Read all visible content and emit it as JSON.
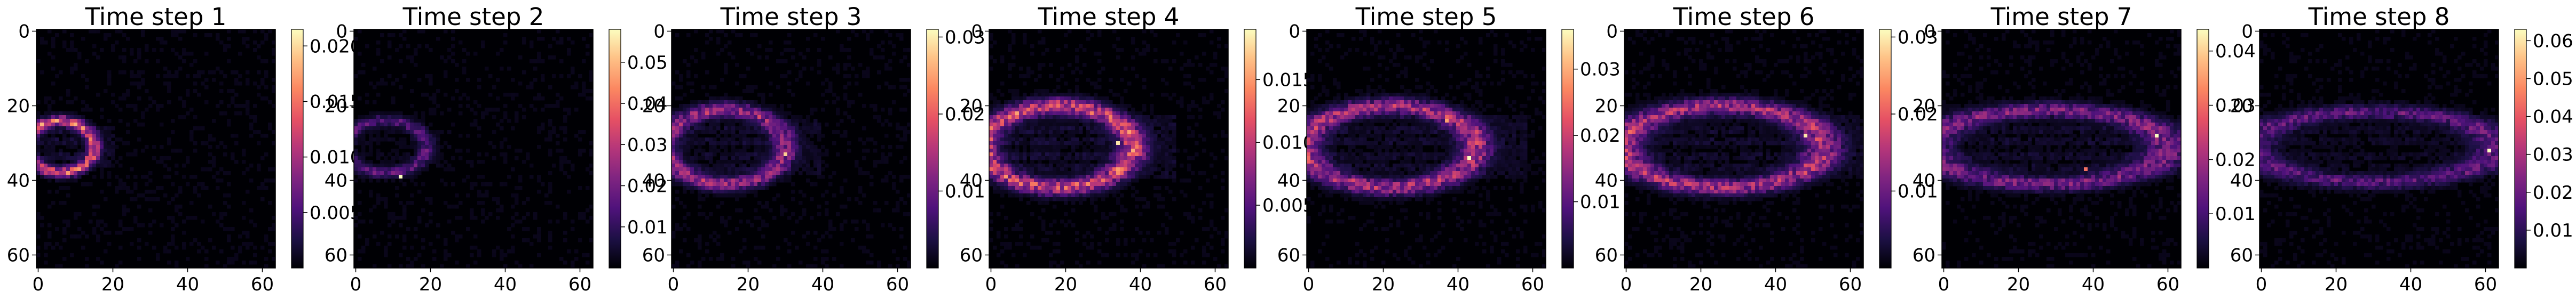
{
  "chart_data": [
    {
      "type": "heatmap",
      "title": "Time step 1",
      "xlim": [
        0,
        63
      ],
      "ylim": [
        63,
        0
      ],
      "xticks": [
        "0",
        "20",
        "40",
        "60"
      ],
      "yticks": [
        "0",
        "20",
        "40",
        "60"
      ],
      "colorbar": {
        "range": [
          0,
          0.0215
        ],
        "ticks": [
          "0.005",
          "0.010",
          "0.015",
          "0.020"
        ],
        "values": [
          0.005,
          0.01,
          0.015,
          0.02
        ]
      },
      "pattern": "small bright arc at the left edge with faint streaks to the right",
      "colormap": "magma"
    },
    {
      "type": "heatmap",
      "title": "Time step 2",
      "xlim": [
        0,
        63
      ],
      "ylim": [
        63,
        0
      ],
      "xticks": [
        "0",
        "20",
        "40",
        "60"
      ],
      "yticks": [
        "0",
        "20",
        "40",
        "60"
      ],
      "colorbar": {
        "range": [
          0,
          0.058
        ],
        "ticks": [
          "0.01",
          "0.02",
          "0.03",
          "0.04",
          "0.05"
        ],
        "values": [
          0.01,
          0.02,
          0.03,
          0.04,
          0.05
        ]
      },
      "pattern": "thin faint ring near the left with one bright point",
      "colormap": "magma"
    },
    {
      "type": "heatmap",
      "title": "Time step 3",
      "xlim": [
        0,
        63
      ],
      "ylim": [
        63,
        0
      ],
      "xticks": [
        "0",
        "20",
        "40",
        "60"
      ],
      "yticks": [
        "0",
        "20",
        "40",
        "60"
      ],
      "colorbar": {
        "range": [
          0,
          0.031
        ],
        "ticks": [
          "0.01",
          "0.02",
          "0.03"
        ],
        "values": [
          0.01,
          0.02,
          0.03
        ]
      },
      "pattern": "oval ring spanning x 0 to 30",
      "colormap": "magma"
    },
    {
      "type": "heatmap",
      "title": "Time step 4",
      "xlim": [
        0,
        63
      ],
      "ylim": [
        63,
        0
      ],
      "xticks": [
        "0",
        "20",
        "40",
        "60"
      ],
      "yticks": [
        "0",
        "20",
        "40",
        "60"
      ],
      "colorbar": {
        "range": [
          0,
          0.019
        ],
        "ticks": [
          "0.005",
          "0.010",
          "0.015"
        ],
        "values": [
          0.005,
          0.01,
          0.015
        ]
      },
      "pattern": "bright oval ring spanning x 0 to 38",
      "colormap": "magma"
    },
    {
      "type": "heatmap",
      "title": "Time step 5",
      "xlim": [
        0,
        63
      ],
      "ylim": [
        63,
        0
      ],
      "xticks": [
        "0",
        "20",
        "40",
        "60"
      ],
      "yticks": [
        "0",
        "20",
        "40",
        "60"
      ],
      "colorbar": {
        "range": [
          0,
          0.036
        ],
        "ticks": [
          "0.01",
          "0.02",
          "0.03"
        ],
        "values": [
          0.01,
          0.02,
          0.03
        ]
      },
      "pattern": "oval ring spanning x 0 to 45",
      "colormap": "magma"
    },
    {
      "type": "heatmap",
      "title": "Time step 6",
      "xlim": [
        0,
        63
      ],
      "ylim": [
        63,
        0
      ],
      "xticks": [
        "0",
        "20",
        "40",
        "60"
      ],
      "yticks": [
        "0",
        "20",
        "40",
        "60"
      ],
      "colorbar": {
        "range": [
          0,
          0.031
        ],
        "ticks": [
          "0.01",
          "0.02",
          "0.03"
        ],
        "values": [
          0.01,
          0.02,
          0.03
        ]
      },
      "pattern": "wide oval ring spanning x 0 to 52",
      "colormap": "magma"
    },
    {
      "type": "heatmap",
      "title": "Time step 7",
      "xlim": [
        0,
        63
      ],
      "ylim": [
        63,
        0
      ],
      "xticks": [
        "0",
        "20",
        "40",
        "60"
      ],
      "yticks": [
        "0",
        "20",
        "40",
        "60"
      ],
      "colorbar": {
        "range": [
          0,
          0.044
        ],
        "ticks": [
          "0.01",
          "0.02",
          "0.03",
          "0.04"
        ],
        "values": [
          0.01,
          0.02,
          0.03,
          0.04
        ]
      },
      "pattern": "elongated ring spanning x 0 to 60 with bright right tip",
      "colormap": "magma"
    },
    {
      "type": "heatmap",
      "title": "Time step 8",
      "xlim": [
        0,
        63
      ],
      "ylim": [
        63,
        0
      ],
      "xticks": [
        "0",
        "20",
        "40",
        "60"
      ],
      "yticks": [
        "0",
        "20",
        "40",
        "60"
      ],
      "colorbar": {
        "range": [
          0,
          0.063
        ],
        "ticks": [
          "0.01",
          "0.02",
          "0.03",
          "0.04",
          "0.05",
          "0.06"
        ],
        "values": [
          0.01,
          0.02,
          0.03,
          0.04,
          0.05,
          0.06
        ]
      },
      "pattern": "elongated faint ring reaching the right edge",
      "colormap": "magma"
    }
  ]
}
